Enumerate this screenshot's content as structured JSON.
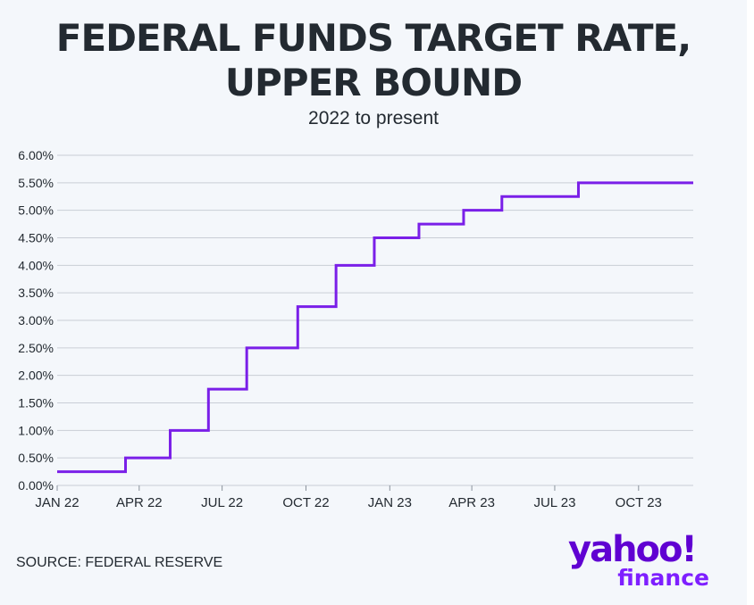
{
  "title_line1": "FEDERAL FUNDS TARGET RATE,",
  "title_line2": "UPPER BOUND",
  "subtitle": "2022 to present",
  "source": "SOURCE: FEDERAL RESERVE",
  "logo": {
    "brand": "yahoo!",
    "sub": "finance"
  },
  "colors": {
    "line": "#7a1fe8",
    "grid": "#c9ced6",
    "text": "#232a31",
    "background": "#f4f7fb",
    "brand": "#6001d2"
  },
  "chart_data": {
    "type": "line",
    "step": true,
    "title": "FEDERAL FUNDS TARGET RATE, UPPER BOUND",
    "subtitle": "2022 to present",
    "xlim": [
      "2022-01-01",
      "2023-11-30"
    ],
    "ylim": [
      0,
      6
    ],
    "grid": true,
    "y_ticks": [
      0,
      0.5,
      1,
      1.5,
      2,
      2.5,
      3,
      3.5,
      4,
      4.5,
      5,
      5.5,
      6
    ],
    "y_tick_labels": [
      "0.00%",
      "0.50%",
      "1.00%",
      "1.50%",
      "2.00%",
      "2.50%",
      "3.00%",
      "3.50%",
      "4.00%",
      "4.50%",
      "5.00%",
      "5.50%",
      "6.00%"
    ],
    "x_ticks": [
      "2022-01-01",
      "2022-04-01",
      "2022-07-01",
      "2022-10-01",
      "2023-01-01",
      "2023-04-01",
      "2023-07-01",
      "2023-10-01"
    ],
    "x_tick_labels": [
      "JAN 22",
      "APR 22",
      "JUL 22",
      "OCT 22",
      "JAN 23",
      "APR 23",
      "JUL 23",
      "OCT 23"
    ],
    "series": [
      {
        "x": [
          "2022-01-01",
          "2022-03-17",
          "2022-05-05",
          "2022-06-16",
          "2022-07-28",
          "2022-09-22",
          "2022-11-03",
          "2022-12-15",
          "2023-02-02",
          "2023-03-23",
          "2023-05-04",
          "2023-07-27",
          "2023-11-30"
        ],
        "y": [
          0.25,
          0.5,
          1.0,
          1.75,
          2.5,
          3.25,
          4.0,
          4.5,
          4.75,
          5.0,
          5.25,
          5.5,
          5.5
        ]
      }
    ]
  }
}
